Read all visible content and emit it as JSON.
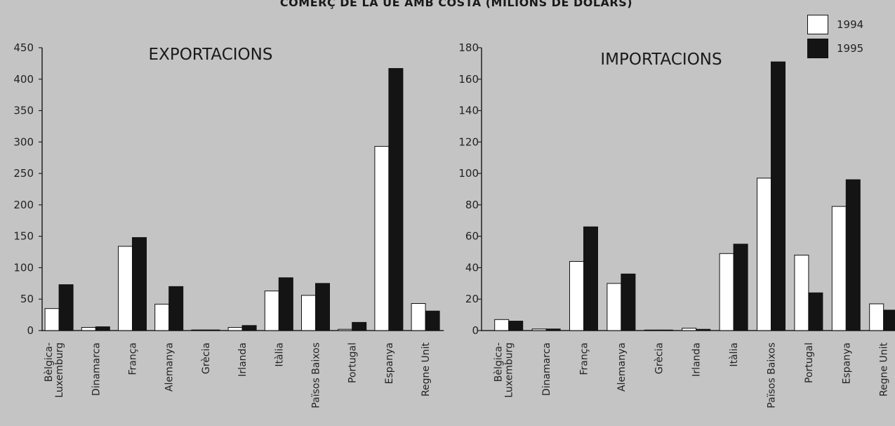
{
  "page_title": "COMERÇ DE LA UE AMB COSTA (MILIONS DE DÒLARS)",
  "colors": {
    "1994": "#ffffff",
    "1995": "#141414",
    "background": "#c4c4c4"
  },
  "legend": [
    {
      "name": "1994",
      "color": "#ffffff"
    },
    {
      "name": "1995",
      "color": "#141414"
    }
  ],
  "chart_data": [
    {
      "type": "bar",
      "title": "EXPORTACIONS",
      "categories": [
        "Bèlgica-\nLuxemburg",
        "Dinamarca",
        "França",
        "Alemanya",
        "Grècia",
        "Irlanda",
        "Itàlia",
        "Països Baixos",
        "Portugal",
        "Espanya",
        "Regne Unit"
      ],
      "series": [
        {
          "name": "1994",
          "values": [
            35,
            5,
            134,
            42,
            1,
            5,
            63,
            56,
            2,
            293,
            43
          ]
        },
        {
          "name": "1995",
          "values": [
            73,
            6,
            148,
            70,
            1,
            8,
            84,
            75,
            13,
            417,
            31
          ]
        }
      ],
      "ylim": [
        0,
        450
      ],
      "yticks": [
        0,
        50,
        100,
        150,
        200,
        250,
        300,
        350,
        400,
        450
      ],
      "grid": false
    },
    {
      "type": "bar",
      "title": "IMPORTACIONS",
      "categories": [
        "Bèlgica-\nLuxemburg",
        "Dinamarca",
        "França",
        "Alemanya",
        "Grècia",
        "Irlanda",
        "Itàlia",
        "Països Baixos",
        "Portugal",
        "Espanya",
        "Regne Unit"
      ],
      "series": [
        {
          "name": "1994",
          "values": [
            7,
            1,
            44,
            30,
            0.3,
            1.5,
            49,
            97,
            48,
            79,
            17
          ]
        },
        {
          "name": "1995",
          "values": [
            6,
            1,
            66,
            36,
            0.3,
            0.8,
            55,
            171,
            24,
            96,
            13
          ]
        }
      ],
      "ylim": [
        0,
        180
      ],
      "yticks": [
        0,
        20,
        40,
        60,
        80,
        100,
        120,
        140,
        160,
        180
      ],
      "grid": false
    }
  ]
}
